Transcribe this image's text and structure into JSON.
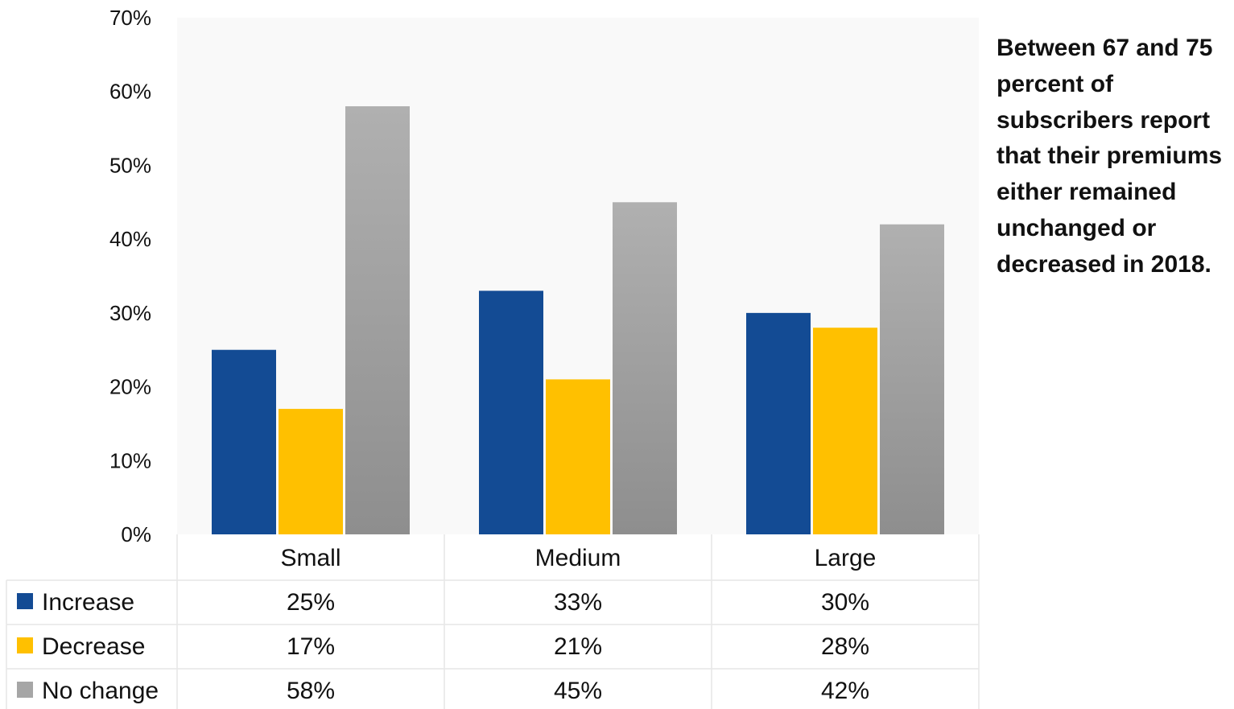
{
  "note": "Between 67 and 75 percent of subscribers report that their premiums either remained unchanged or decreased in 2018.",
  "chart_data": {
    "type": "bar",
    "categories": [
      "Small",
      "Medium",
      "Large"
    ],
    "series": [
      {
        "name": "Increase",
        "values": [
          25,
          33,
          30
        ],
        "labels": [
          "25%",
          "33%",
          "30%"
        ],
        "color": "#134b94"
      },
      {
        "name": "Decrease",
        "values": [
          17,
          21,
          28
        ],
        "labels": [
          "17%",
          "21%",
          "28%"
        ],
        "color": "#ffc000"
      },
      {
        "name": "No change",
        "values": [
          58,
          45,
          42
        ],
        "labels": [
          "58%",
          "45%",
          "42%"
        ],
        "color": "#a6a6a6"
      }
    ],
    "yticks": [
      "0%",
      "10%",
      "20%",
      "30%",
      "40%",
      "50%",
      "60%",
      "70%"
    ],
    "ylim": [
      0,
      70
    ],
    "grid": false,
    "legend": "data-table"
  }
}
